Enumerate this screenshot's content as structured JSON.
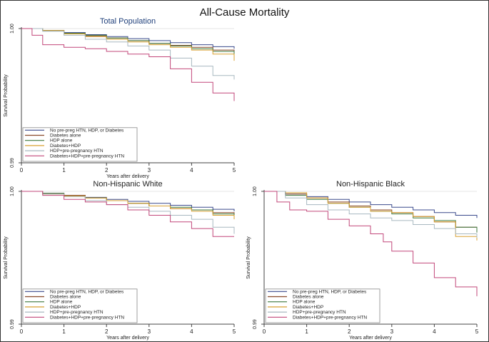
{
  "figure_title": "All-Cause Mortality",
  "chart_data": [
    {
      "type": "line",
      "title": "Total Population",
      "xlabel": "Years after delivery",
      "ylabel": "Survival Probability",
      "xlim": [
        0,
        5
      ],
      "ylim": [
        0.99,
        1.0
      ],
      "xticks": [
        "0",
        "1",
        "2",
        "3",
        "4",
        "5"
      ],
      "yticks": [
        "0.99",
        "1.00"
      ],
      "legend": [
        "No pre-preg HTN, HDP, or Diabetes",
        "Diabetes alone",
        "HDP alone",
        "Diabetes+HDP",
        "HDP+pre-pregnancy HTN",
        "Diabetes+HDP+pre-pregnancy HTN"
      ],
      "series": [
        {
          "name": "No pre-preg HTN, HDP, or Diabetes",
          "color": "#3a4a8c",
          "x": [
            0,
            0.5,
            1,
            1.5,
            2,
            2.5,
            3,
            3.5,
            4,
            4.5,
            5
          ],
          "y": [
            1.0,
            0.99985,
            0.9997,
            0.99955,
            0.9994,
            0.99925,
            0.9991,
            0.99895,
            0.9988,
            0.99865,
            0.9985
          ]
        },
        {
          "name": "Diabetes alone",
          "color": "#8a4a2a",
          "x": [
            0,
            0.5,
            1,
            1.5,
            2,
            2.5,
            3,
            3.5,
            4,
            4.5,
            5
          ],
          "y": [
            1.0,
            0.99985,
            0.99965,
            0.99945,
            0.9993,
            0.9991,
            0.9989,
            0.99875,
            0.9986,
            0.9984,
            0.9982
          ]
        },
        {
          "name": "HDP alone",
          "color": "#3f7a3f",
          "x": [
            0,
            0.5,
            1,
            1.5,
            2,
            2.5,
            3,
            3.5,
            4,
            4.5,
            5
          ],
          "y": [
            1.0,
            0.99985,
            0.99965,
            0.9995,
            0.9993,
            0.9991,
            0.9989,
            0.9987,
            0.9985,
            0.9983,
            0.998
          ]
        },
        {
          "name": "Diabetes+HDP",
          "color": "#d9a030",
          "x": [
            0,
            0.5,
            1,
            1.5,
            2,
            2.5,
            3,
            3.5,
            4,
            4.5,
            5
          ],
          "y": [
            1.0,
            0.99985,
            0.9996,
            0.9994,
            0.9992,
            0.999,
            0.9988,
            0.9986,
            0.9984,
            0.9981,
            0.9976
          ]
        },
        {
          "name": "HDP+pre-pregnancy HTN",
          "color": "#a8b8c0",
          "x": [
            0,
            0.5,
            1,
            1.5,
            2,
            2.5,
            3,
            3.5,
            4,
            4.5,
            5
          ],
          "y": [
            1.0,
            0.9998,
            0.9995,
            0.9992,
            0.999,
            0.9987,
            0.9984,
            0.9978,
            0.9972,
            0.9965,
            0.9962
          ]
        },
        {
          "name": "Diabetes+HDP+pre-pregnancy HTN",
          "color": "#c2477a",
          "x": [
            0,
            0.25,
            0.5,
            1,
            1.5,
            2,
            2.5,
            3,
            3.5,
            4,
            4.5,
            5
          ],
          "y": [
            1.0,
            0.9995,
            0.9988,
            0.9986,
            0.9985,
            0.9983,
            0.9981,
            0.9979,
            0.997,
            0.996,
            0.9952,
            0.9946
          ]
        }
      ]
    },
    {
      "type": "line",
      "title": "Non-Hispanic White",
      "xlabel": "Years after delivery",
      "ylabel": "Survival Probability",
      "xlim": [
        0,
        5
      ],
      "ylim": [
        0.99,
        1.0
      ],
      "xticks": [
        "0",
        "1",
        "2",
        "3",
        "4",
        "5"
      ],
      "yticks": [
        "0.99",
        "1.00"
      ],
      "legend": [
        "No pre-preg HTN, HDP, or Diabetes",
        "Diabetes alone",
        "HDP alone",
        "Diabetes+HDP",
        "HDP+pre-pregnancy HTN",
        "Diabetes+HDP+pre-pregnancy HTN"
      ],
      "series": [
        {
          "name": "No pre-preg HTN, HDP, or Diabetes",
          "color": "#3a4a8c",
          "x": [
            0,
            0.5,
            1,
            1.5,
            2,
            2.5,
            3,
            3.5,
            4,
            4.5,
            5
          ],
          "y": [
            1.0,
            0.99985,
            0.9997,
            0.99955,
            0.9994,
            0.99925,
            0.9991,
            0.99895,
            0.9988,
            0.99865,
            0.9985
          ]
        },
        {
          "name": "Diabetes alone",
          "color": "#8a4a2a",
          "x": [
            0,
            0.5,
            1,
            1.5,
            2,
            2.5,
            3,
            3.5,
            4,
            4.5,
            5
          ],
          "y": [
            1.0,
            0.99985,
            0.9997,
            0.9995,
            0.9993,
            0.9991,
            0.9989,
            0.9987,
            0.9986,
            0.9984,
            0.9982
          ]
        },
        {
          "name": "HDP alone",
          "color": "#3f7a3f",
          "x": [
            0,
            0.5,
            1,
            1.5,
            2,
            2.5,
            3,
            3.5,
            4,
            4.5,
            5
          ],
          "y": [
            1.0,
            0.99985,
            0.99965,
            0.9995,
            0.9993,
            0.9991,
            0.9989,
            0.9988,
            0.9986,
            0.9983,
            0.998
          ]
        },
        {
          "name": "Diabetes+HDP",
          "color": "#d9a030",
          "x": [
            0,
            0.5,
            1,
            1.5,
            2,
            2.5,
            3,
            3.5,
            4,
            4.5,
            5
          ],
          "y": [
            1.0,
            0.9998,
            0.99965,
            0.9995,
            0.9993,
            0.9991,
            0.9989,
            0.9987,
            0.9985,
            0.9982,
            0.9979
          ]
        },
        {
          "name": "HDP+pre-pregnancy HTN",
          "color": "#a8b8c0",
          "x": [
            0,
            0.5,
            1,
            1.5,
            2,
            2.5,
            3,
            3.5,
            4,
            4.5,
            5
          ],
          "y": [
            1.0,
            0.9998,
            0.9996,
            0.9993,
            0.999,
            0.9988,
            0.9985,
            0.9982,
            0.9979,
            0.9973,
            0.9968
          ]
        },
        {
          "name": "Diabetes+HDP+pre-pregnancy HTN",
          "color": "#c2477a",
          "x": [
            0,
            0.5,
            1,
            1.5,
            2,
            2.5,
            3,
            3.5,
            4,
            4.5,
            5
          ],
          "y": [
            1.0,
            0.9997,
            0.9994,
            0.9992,
            0.999,
            0.9986,
            0.9982,
            0.9977,
            0.9972,
            0.9966,
            0.9966
          ]
        }
      ]
    },
    {
      "type": "line",
      "title": "Non-Hispanic Black",
      "xlabel": "Years after delivery",
      "ylabel": "Survival Probability",
      "xlim": [
        0,
        5
      ],
      "ylim": [
        0.99,
        1.0
      ],
      "xticks": [
        "0",
        "1",
        "2",
        "3",
        "4",
        "5"
      ],
      "yticks": [
        "0.99",
        "1.00"
      ],
      "legend": [
        "No pre-preg HTN, HDP, or Diabetes",
        "Diabetes alone",
        "HDP alone",
        "Diabetes+HDP",
        "HDP+pre-pregnancy HTN",
        "Diabetes+HDP+pre-pregnancy HTN"
      ],
      "series": [
        {
          "name": "No pre-preg HTN, HDP, or Diabetes",
          "color": "#3a4a8c",
          "x": [
            0,
            0.5,
            1,
            1.5,
            2,
            2.5,
            3,
            3.5,
            4,
            4.5,
            5
          ],
          "y": [
            1.0,
            0.9998,
            0.9996,
            0.9994,
            0.9992,
            0.999,
            0.9988,
            0.9986,
            0.9984,
            0.9982,
            0.998
          ]
        },
        {
          "name": "Diabetes alone",
          "color": "#8a4a2a",
          "x": [
            0,
            0.5,
            1,
            1.5,
            2,
            2.5,
            3,
            3.5,
            4,
            4.5,
            5
          ],
          "y": [
            1.0,
            0.9998,
            0.9995,
            0.9992,
            0.9989,
            0.9986,
            0.9984,
            0.9981,
            0.9977,
            0.9973,
            0.9971
          ]
        },
        {
          "name": "HDP alone",
          "color": "#3f7a3f",
          "x": [
            0,
            0.5,
            1,
            1.5,
            2,
            2.5,
            3,
            3.5,
            4,
            4.5,
            5
          ],
          "y": [
            1.0,
            0.9997,
            0.9994,
            0.9991,
            0.9988,
            0.9985,
            0.9983,
            0.998,
            0.9978,
            0.9973,
            0.9969
          ]
        },
        {
          "name": "Diabetes+HDP",
          "color": "#d9a030",
          "x": [
            0,
            0.5,
            1,
            1.5,
            2,
            2.5,
            3,
            3.5,
            4,
            4.5,
            5
          ],
          "y": [
            1.0,
            0.9999,
            0.9995,
            0.9991,
            0.9988,
            0.9985,
            0.9984,
            0.9981,
            0.9977,
            0.9966,
            0.9963
          ]
        },
        {
          "name": "HDP+pre-pregnancy HTN",
          "color": "#a8b8c0",
          "x": [
            0,
            0.5,
            1,
            1.5,
            2,
            2.5,
            3,
            3.5,
            4,
            4.5,
            5
          ],
          "y": [
            1.0,
            0.9995,
            0.999,
            0.9986,
            0.9983,
            0.998,
            0.9978,
            0.9975,
            0.9972,
            0.9968,
            0.9965
          ]
        },
        {
          "name": "Diabetes+HDP+pre-pregnancy HTN",
          "color": "#c2477a",
          "x": [
            0,
            0.3,
            0.6,
            1,
            1.5,
            2,
            2.5,
            2.8,
            3,
            3.5,
            4,
            4.5,
            5
          ],
          "y": [
            1.0,
            0.9992,
            0.9986,
            0.9985,
            0.9979,
            0.9974,
            0.9968,
            0.9962,
            0.9955,
            0.9946,
            0.9935,
            0.9928,
            0.9921
          ]
        }
      ]
    }
  ]
}
